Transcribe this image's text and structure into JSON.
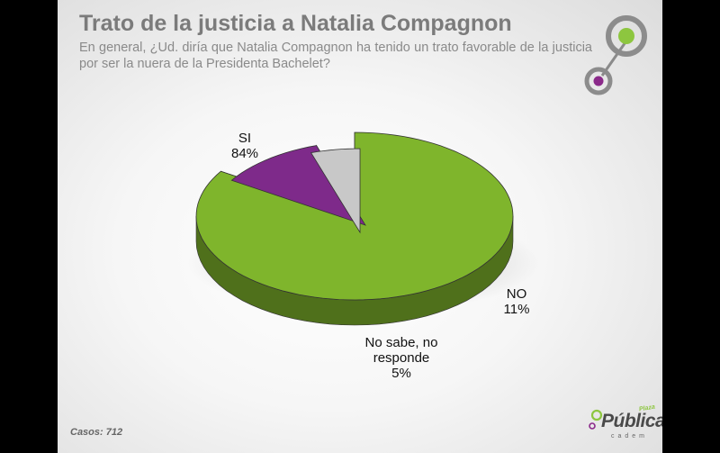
{
  "header": {
    "title": "Trato de la justicia a Natalia Compagnon",
    "subtitle": "En general, ¿Ud. diría que Natalia Compagnon ha tenido un trato favorable de la justicia por ser la nuera de la Presidenta Bachelet?"
  },
  "chart_data": {
    "type": "pie",
    "slices": [
      {
        "label": "SI",
        "value": 84,
        "value_label": "84%",
        "color": "#7fb52c"
      },
      {
        "label": "NO",
        "value": 11,
        "value_label": "11%",
        "color": "#7e2a8a"
      },
      {
        "label": "No sabe, no responde",
        "label_lines": [
          "No sabe, no",
          "responde"
        ],
        "value": 5,
        "value_label": "5%",
        "color": "#c8c8c8"
      }
    ]
  },
  "footer": {
    "cases": "Casos: 712",
    "brand_small": "Plaza",
    "brand_name": "Pública",
    "brand_sub": "cadem"
  },
  "colors": {
    "accent_green": "#8dc63f",
    "accent_purple": "#8b2a8a",
    "title_gray": "#7b7b7b"
  },
  "icons": [
    "logo-rings-icon",
    "brand-dot-icon"
  ]
}
